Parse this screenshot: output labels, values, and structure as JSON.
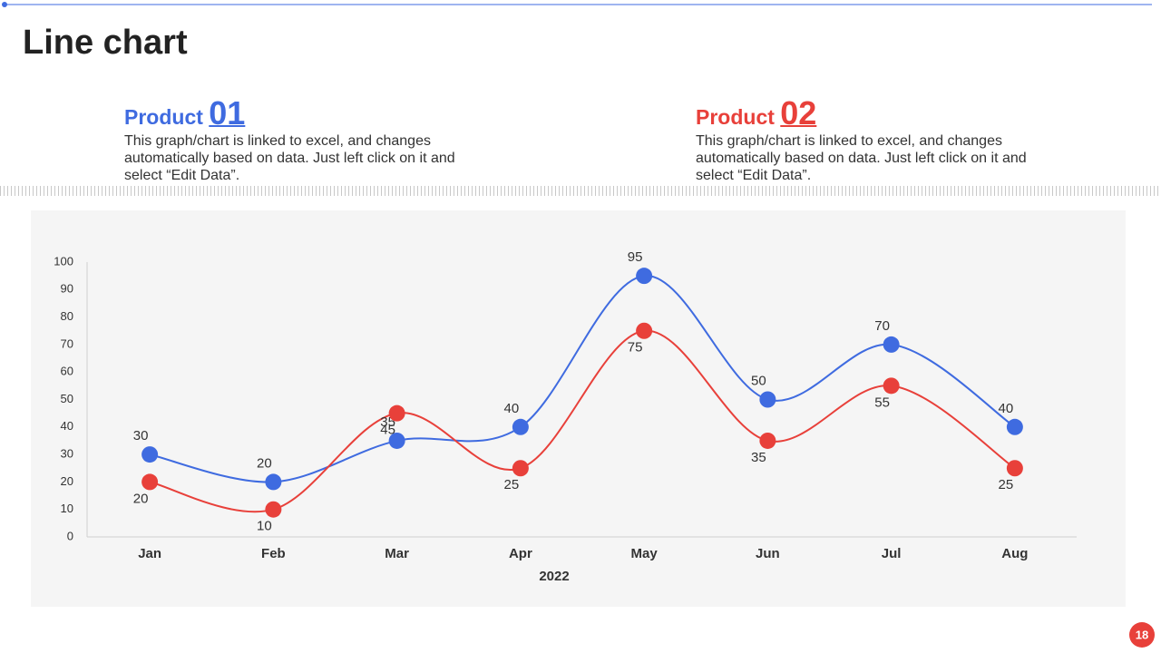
{
  "header": {
    "title": "Line chart",
    "page_number": "18"
  },
  "products": [
    {
      "label": "Product",
      "number": "01",
      "color": "#3f6be0",
      "text": "This graph/chart is linked to excel, and changes automatically based on data. Just left click on it and select “Edit Data”."
    },
    {
      "label": "Product",
      "number": "02",
      "color": "#e8403a",
      "text": "This graph/chart is linked to excel, and changes automatically based on data. Just left click on it and select “Edit Data”."
    }
  ],
  "chart_data": {
    "type": "line",
    "x_label": "2022",
    "categories": [
      "Jan",
      "Feb",
      "Mar",
      "Apr",
      "May",
      "Jun",
      "Jul",
      "Aug"
    ],
    "series": [
      {
        "color": "#3f6be0",
        "values": [
          30,
          20,
          35,
          40,
          95,
          50,
          70,
          40
        ]
      },
      {
        "color": "#e8403a",
        "values": [
          20,
          10,
          45,
          25,
          75,
          35,
          55,
          25
        ]
      }
    ],
    "ylim": [
      0,
      100
    ],
    "yticks": [
      0,
      10,
      20,
      30,
      40,
      50,
      60,
      70,
      80,
      90,
      100
    ],
    "grid": false,
    "smooth": true
  }
}
